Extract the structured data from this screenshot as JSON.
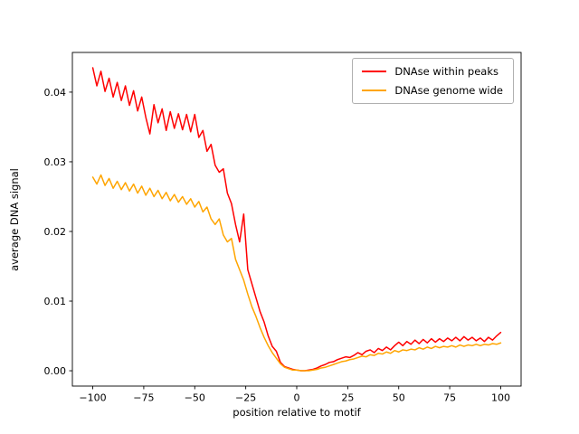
{
  "figure": {
    "background": "#ffffff"
  },
  "chart_data": {
    "type": "line",
    "title": "",
    "xlabel": "position relative to motif",
    "ylabel": "average DNA signal",
    "grid": false,
    "legend_position": "upper right",
    "xlim": [
      -110,
      110
    ],
    "ylim": [
      -0.0022,
      0.0457
    ],
    "xtick_values": [
      -100,
      -75,
      -50,
      -25,
      0,
      25,
      50,
      75,
      100
    ],
    "xtick_labels": [
      "−100",
      "−75",
      "−50",
      "−25",
      "0",
      "25",
      "50",
      "75",
      "100"
    ],
    "ytick_values": [
      0.0,
      0.01,
      0.02,
      0.03,
      0.04
    ],
    "ytick_labels": [
      "0.00",
      "0.01",
      "0.02",
      "0.03",
      "0.04"
    ],
    "x": [
      -100,
      -98,
      -96,
      -94,
      -92,
      -90,
      -88,
      -86,
      -84,
      -82,
      -80,
      -78,
      -76,
      -74,
      -72,
      -70,
      -68,
      -66,
      -64,
      -62,
      -60,
      -58,
      -56,
      -54,
      -52,
      -50,
      -48,
      -46,
      -44,
      -42,
      -40,
      -38,
      -36,
      -34,
      -32,
      -30,
      -28,
      -26,
      -24,
      -22,
      -20,
      -18,
      -16,
      -14,
      -12,
      -10,
      -8,
      -6,
      -4,
      -2,
      0,
      2,
      4,
      6,
      8,
      10,
      12,
      14,
      16,
      18,
      20,
      22,
      24,
      26,
      28,
      30,
      32,
      34,
      36,
      38,
      40,
      42,
      44,
      46,
      48,
      50,
      52,
      54,
      56,
      58,
      60,
      62,
      64,
      66,
      68,
      70,
      72,
      74,
      76,
      78,
      80,
      82,
      84,
      86,
      88,
      90,
      92,
      94,
      96,
      98,
      100
    ],
    "series": [
      {
        "name": "DNAse within peaks",
        "color": "#ff0000",
        "values": [
          0.0435,
          0.0409,
          0.043,
          0.0401,
          0.042,
          0.0393,
          0.0414,
          0.0388,
          0.0409,
          0.0381,
          0.0402,
          0.0373,
          0.0393,
          0.0364,
          0.034,
          0.0382,
          0.0356,
          0.0376,
          0.0345,
          0.0372,
          0.0348,
          0.0369,
          0.0346,
          0.0368,
          0.0343,
          0.0368,
          0.0335,
          0.0345,
          0.0315,
          0.0325,
          0.0295,
          0.0285,
          0.029,
          0.0255,
          0.024,
          0.021,
          0.0185,
          0.0225,
          0.0145,
          0.0125,
          0.0105,
          0.0085,
          0.007,
          0.005,
          0.0035,
          0.0028,
          0.0012,
          0.0006,
          0.0004,
          0.0002,
          0.0001,
          0.0,
          0.0,
          0.0001,
          0.0002,
          0.0004,
          0.0007,
          0.0009,
          0.0012,
          0.0013,
          0.0016,
          0.0018,
          0.002,
          0.0019,
          0.0022,
          0.0026,
          0.0023,
          0.0028,
          0.003,
          0.0026,
          0.0032,
          0.0029,
          0.0034,
          0.003,
          0.0036,
          0.0041,
          0.0036,
          0.0042,
          0.0038,
          0.0044,
          0.0039,
          0.0045,
          0.004,
          0.0046,
          0.0041,
          0.0046,
          0.0042,
          0.0047,
          0.0043,
          0.0048,
          0.0043,
          0.0049,
          0.0044,
          0.0048,
          0.0043,
          0.0047,
          0.0042,
          0.0048,
          0.0044,
          0.005,
          0.0055
        ]
      },
      {
        "name": "DNAse genome wide",
        "color": "#ffa500",
        "values": [
          0.0278,
          0.0268,
          0.0281,
          0.0266,
          0.0276,
          0.0262,
          0.0272,
          0.026,
          0.027,
          0.0258,
          0.0268,
          0.0255,
          0.0265,
          0.0252,
          0.0262,
          0.025,
          0.0259,
          0.0247,
          0.0256,
          0.0244,
          0.0253,
          0.0242,
          0.025,
          0.0239,
          0.0247,
          0.0235,
          0.0243,
          0.0228,
          0.0235,
          0.0218,
          0.021,
          0.0218,
          0.0195,
          0.0185,
          0.019,
          0.016,
          0.0145,
          0.013,
          0.011,
          0.0092,
          0.0078,
          0.0062,
          0.0048,
          0.0036,
          0.0026,
          0.0018,
          0.001,
          0.0005,
          0.0003,
          0.0001,
          0.0001,
          0.0,
          0.0,
          0.0,
          0.0001,
          0.0002,
          0.0004,
          0.0005,
          0.0007,
          0.0009,
          0.0011,
          0.0013,
          0.0014,
          0.0016,
          0.0017,
          0.0019,
          0.0021,
          0.002,
          0.0023,
          0.0022,
          0.0025,
          0.0024,
          0.0027,
          0.0025,
          0.0029,
          0.0027,
          0.003,
          0.0029,
          0.0031,
          0.003,
          0.0033,
          0.0031,
          0.0034,
          0.0032,
          0.0035,
          0.0033,
          0.0035,
          0.0034,
          0.0036,
          0.0034,
          0.0037,
          0.0035,
          0.0037,
          0.0036,
          0.0038,
          0.0036,
          0.0038,
          0.0037,
          0.0039,
          0.0038,
          0.004
        ]
      }
    ]
  }
}
